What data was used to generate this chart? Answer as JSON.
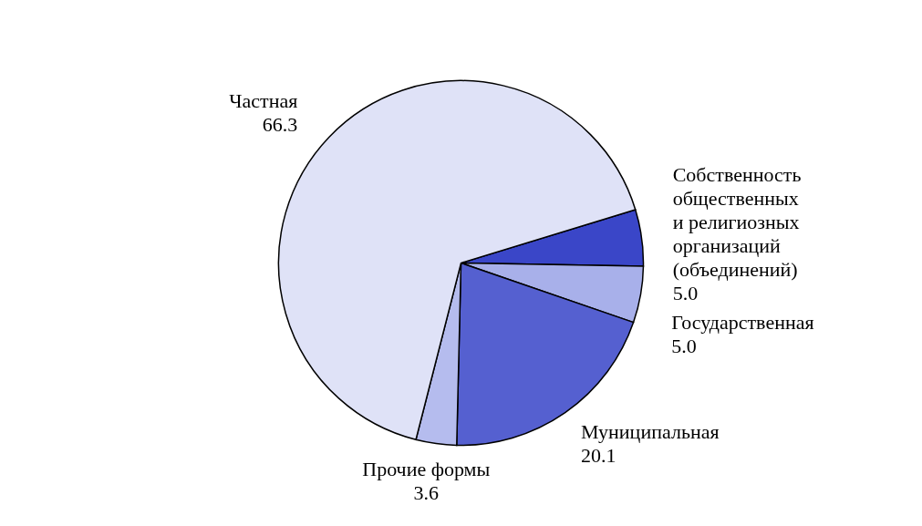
{
  "chart_data": {
    "type": "pie",
    "categories": [
      "Собственность общественных и религиозных организаций (объединений)",
      "Государственная",
      "Муниципальная",
      "Прочие формы",
      "Частная"
    ],
    "values": [
      5.0,
      5.0,
      20.1,
      3.6,
      66.3
    ],
    "value_labels": [
      "5.0",
      "5.0",
      "20.1",
      "3.6",
      "66.3"
    ],
    "colors": [
      "#3a46c8",
      "#a8b0ea",
      "#5560d0",
      "#b5bcee",
      "#dfe2f7"
    ]
  }
}
